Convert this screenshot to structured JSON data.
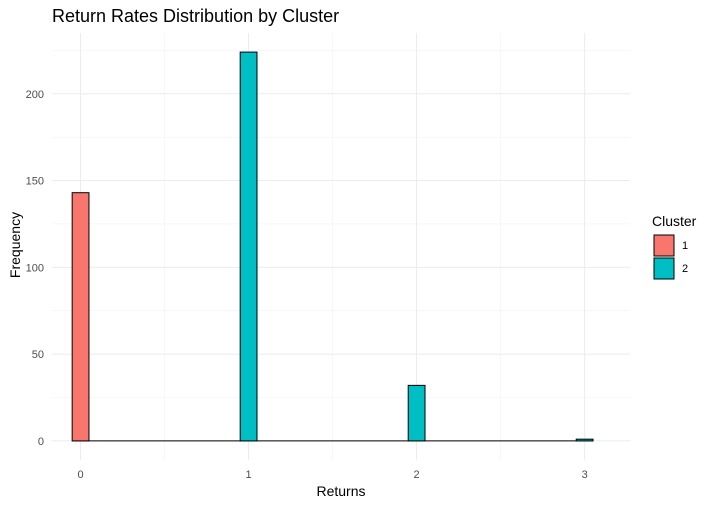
{
  "chart_data": {
    "type": "bar",
    "title": "Return Rates Distribution by Cluster",
    "xlabel": "Returns",
    "ylabel": "Frequency",
    "x_ticks": [
      0,
      1,
      2,
      3
    ],
    "y_ticks": [
      0,
      50,
      100,
      150,
      200
    ],
    "xlim": [
      -0.17,
      3.27
    ],
    "ylim": [
      -11,
      235
    ],
    "bin_width": 0.1,
    "grid": true,
    "legend": {
      "title": "Cluster",
      "placement": "right",
      "entries": [
        {
          "label": "1",
          "color": "#F8766D"
        },
        {
          "label": "2",
          "color": "#00BFC4"
        }
      ]
    },
    "series": [
      {
        "name": "1",
        "color": "#F8766D",
        "bars": [
          {
            "x": 0,
            "value": 143
          }
        ]
      },
      {
        "name": "2",
        "color": "#00BFC4",
        "bars": [
          {
            "x": 1,
            "value": 224
          },
          {
            "x": 2,
            "value": 32
          },
          {
            "x": 3,
            "value": 1
          }
        ]
      }
    ]
  }
}
